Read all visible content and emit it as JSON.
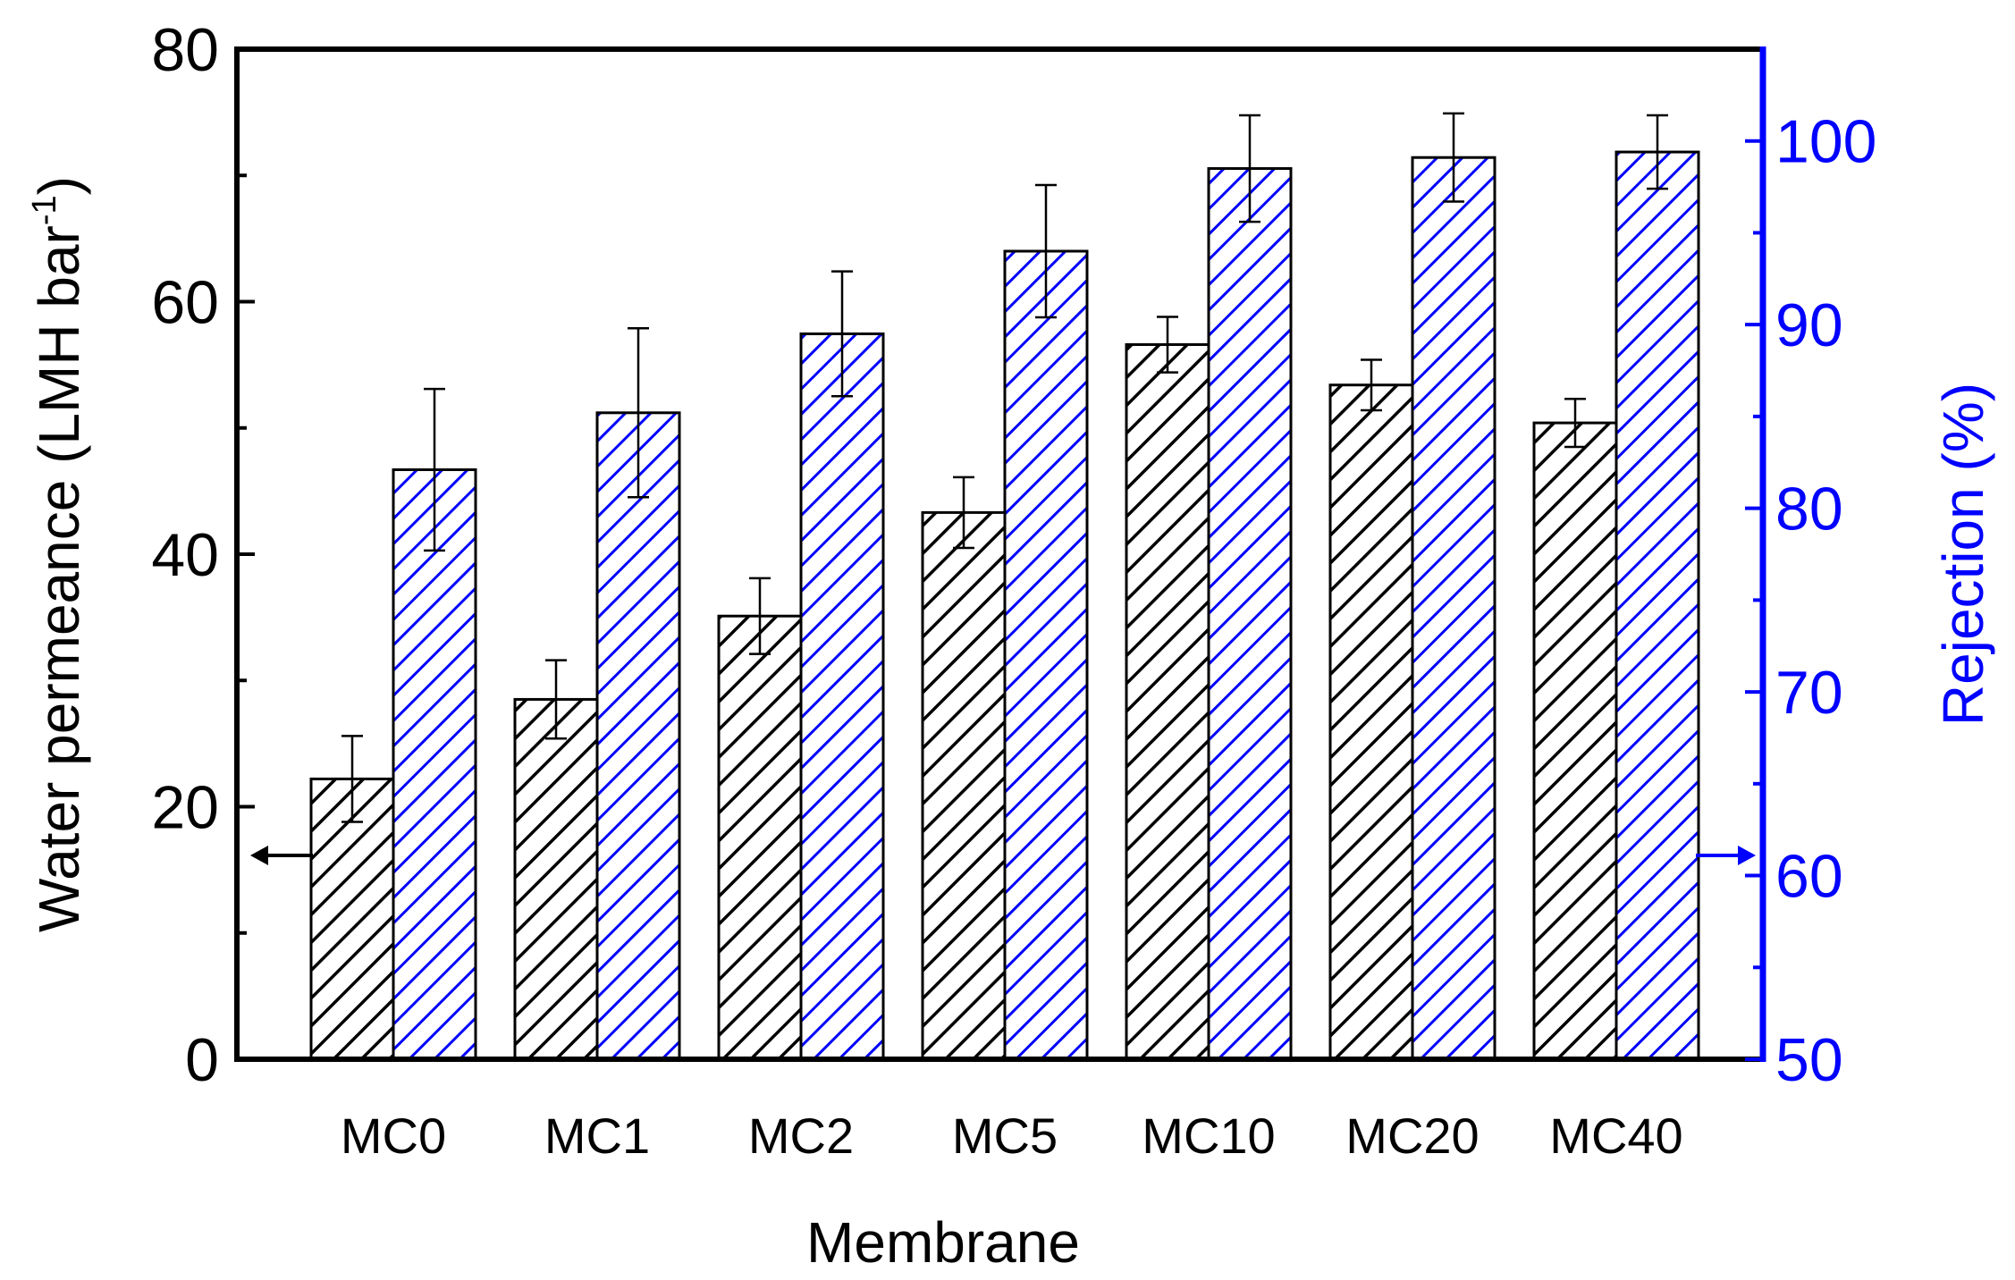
{
  "chart_data": {
    "type": "bar",
    "xlabel": "Membrane",
    "ylabel_left": {
      "main": "Water permeance (LMH bar",
      "sup": "-1",
      "close": ")"
    },
    "ylabel_right": "Rejection (%)",
    "categories": [
      "MC0",
      "MC1",
      "MC2",
      "MC5",
      "MC10",
      "MC20",
      "MC40"
    ],
    "left_axis": {
      "range": [
        0,
        80
      ],
      "ticks": [
        "0",
        "20",
        "40",
        "60",
        "80"
      ],
      "color": "#000000"
    },
    "right_axis": {
      "range": [
        50,
        105
      ],
      "ticks": [
        "50",
        "60",
        "70",
        "80",
        "90",
        "100"
      ],
      "color": "#0000ff"
    },
    "series": [
      {
        "name": "Water permeance",
        "axis": "left",
        "color": "#000000",
        "pattern": "black-hatch",
        "values": [
          22.2,
          28.5,
          35.1,
          43.3,
          56.6,
          53.4,
          50.4
        ],
        "errors": [
          3.4,
          3.1,
          3.0,
          2.8,
          2.2,
          2.0,
          1.9
        ]
      },
      {
        "name": "Rejection",
        "axis": "right",
        "color": "#0000ff",
        "pattern": "blue-hatch",
        "values": [
          82.1,
          85.2,
          89.5,
          94.0,
          98.5,
          99.1,
          99.4
        ],
        "errors": [
          4.4,
          4.6,
          3.4,
          3.6,
          2.9,
          2.4,
          2.0
        ]
      }
    ],
    "annotations": [
      {
        "type": "arrow",
        "direction": "left",
        "series": "Water permeance",
        "color": "#000000"
      },
      {
        "type": "arrow",
        "direction": "right",
        "series": "Rejection",
        "color": "#0000ff"
      }
    ]
  }
}
